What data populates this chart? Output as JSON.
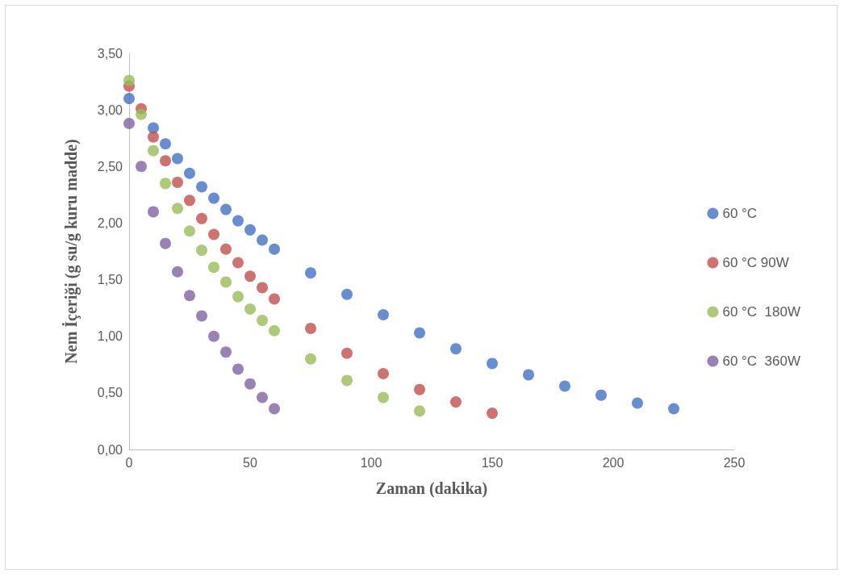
{
  "chart_data": {
    "type": "scatter",
    "xlabel": "Zaman (dakika)",
    "ylabel": "Nem İçeriği (g su/g kuru madde)",
    "xlim": [
      0,
      250
    ],
    "xticks": [
      0,
      50,
      100,
      150,
      200,
      250
    ],
    "ylim": [
      0,
      3.5
    ],
    "yticks": [
      {
        "value": 0,
        "label": "0,00"
      },
      {
        "value": 0.5,
        "label": "0,50"
      },
      {
        "value": 1,
        "label": "1,00"
      },
      {
        "value": 1.5,
        "label": "1,50"
      },
      {
        "value": 2,
        "label": "2,00"
      },
      {
        "value": 2.5,
        "label": "2,50"
      },
      {
        "value": 3,
        "label": "3,00"
      },
      {
        "value": 3.5,
        "label": "3,50"
      }
    ],
    "grid": false,
    "legend": "right",
    "marker": "circle",
    "series": [
      {
        "name": "60 °C",
        "color": "#4472c4",
        "x": [
          0,
          10,
          15,
          20,
          25,
          30,
          35,
          40,
          45,
          50,
          55,
          60,
          75,
          90,
          105,
          120,
          135,
          150,
          165,
          180,
          195,
          210,
          225
        ],
        "values": [
          3.1,
          2.84,
          2.7,
          2.57,
          2.44,
          2.32,
          2.22,
          2.12,
          2.02,
          1.94,
          1.85,
          1.77,
          1.56,
          1.37,
          1.19,
          1.03,
          0.89,
          0.76,
          0.66,
          0.56,
          0.48,
          0.41,
          0.36
        ]
      },
      {
        "name": "60 °C 90W",
        "color": "#c0504d",
        "x": [
          0,
          5,
          10,
          15,
          20,
          25,
          30,
          35,
          40,
          45,
          50,
          55,
          60,
          75,
          90,
          105,
          120,
          135,
          150
        ],
        "values": [
          3.21,
          3.01,
          2.76,
          2.55,
          2.36,
          2.2,
          2.04,
          1.9,
          1.77,
          1.65,
          1.53,
          1.43,
          1.33,
          1.07,
          0.85,
          0.67,
          0.53,
          0.42,
          0.32
        ]
      },
      {
        "name": "60 °C  180W",
        "color": "#9bbb59",
        "x": [
          0,
          5,
          10,
          15,
          20,
          25,
          30,
          35,
          40,
          45,
          50,
          55,
          60,
          75,
          90,
          105,
          120
        ],
        "values": [
          3.26,
          2.96,
          2.64,
          2.35,
          2.13,
          1.93,
          1.76,
          1.61,
          1.48,
          1.35,
          1.24,
          1.14,
          1.05,
          0.8,
          0.61,
          0.46,
          0.34
        ]
      },
      {
        "name": "60 °C  360W",
        "color": "#8064a2",
        "x": [
          0,
          5,
          10,
          15,
          20,
          25,
          30,
          35,
          40,
          45,
          50,
          55,
          60
        ],
        "values": [
          2.88,
          2.5,
          2.1,
          1.82,
          1.57,
          1.36,
          1.18,
          1.0,
          0.86,
          0.71,
          0.58,
          0.46,
          0.36
        ]
      }
    ]
  }
}
